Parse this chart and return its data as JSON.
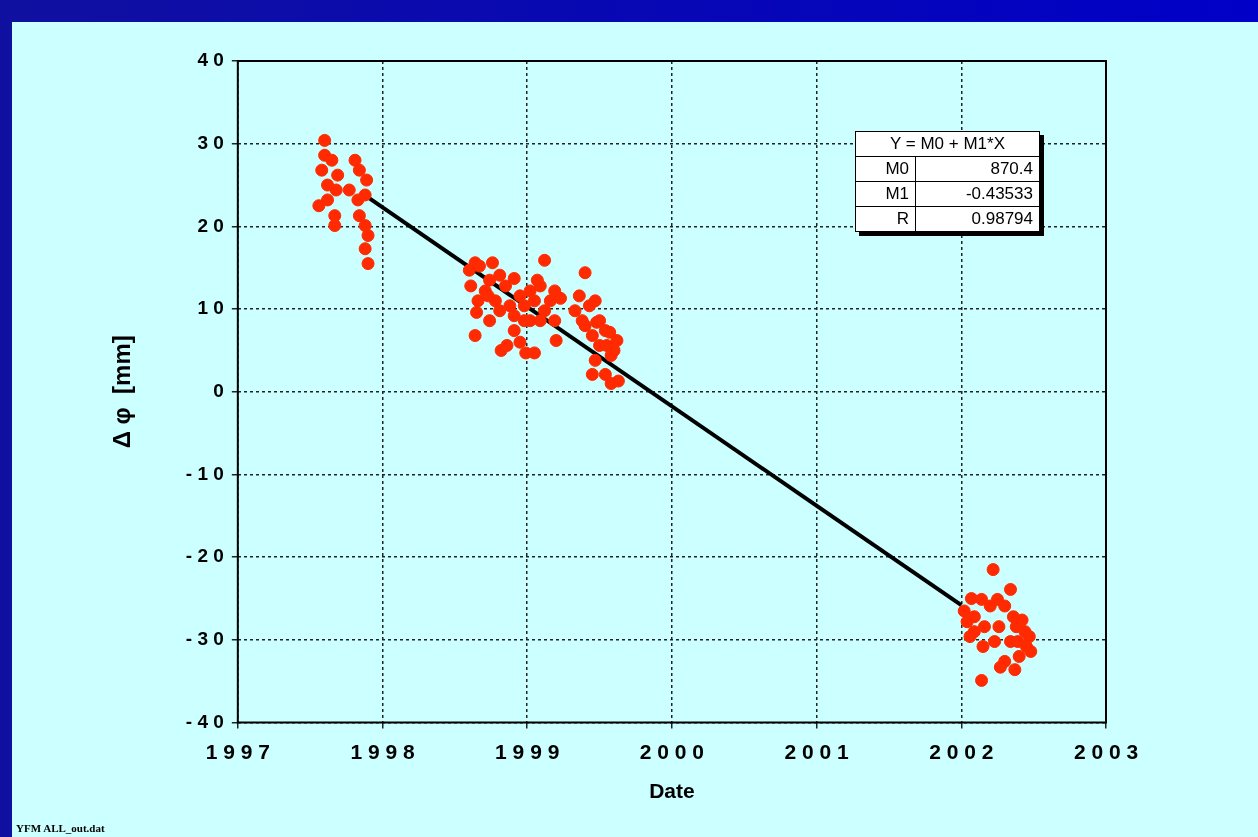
{
  "chart_data": {
    "type": "scatter",
    "xlabel": "Date",
    "ylabel": "Δ φ  [mm]",
    "xlim": [
      1997,
      2003
    ],
    "xticks": [
      1997,
      1998,
      1999,
      2000,
      2001,
      2002,
      2003
    ],
    "ylim": [
      -40,
      40
    ],
    "yticks": [
      -40,
      -30,
      -20,
      -10,
      0,
      10,
      20,
      30,
      40
    ],
    "grid": true,
    "legend": false,
    "annotations": [
      "Y = M0 + M1*X",
      "M0",
      "870.4",
      "M1",
      "-0.43533",
      "R",
      "0.98794",
      "YFM ALL_out.dat"
    ],
    "series": [
      {
        "type": "scatter",
        "marker": "circle",
        "color": "#ff2a00",
        "x": [
          1997.6,
          1997.6,
          1997.58,
          1997.65,
          1997.62,
          1997.69,
          1997.62,
          1997.68,
          1997.67,
          1997.67,
          1997.81,
          1997.84,
          1997.89,
          1997.88,
          1997.83,
          1997.84,
          1997.88,
          1997.9,
          1997.88,
          1997.9,
          1997.77,
          1997.56,
          1998.64,
          1998.6,
          1998.67,
          1998.76,
          1998.61,
          1998.66,
          1998.71,
          1998.74,
          1998.81,
          1998.85,
          1998.91,
          1998.64,
          1998.65,
          1998.78,
          1998.81,
          1998.88,
          1998.95,
          1998.82,
          1998.86,
          1998.91,
          1998.98,
          1998.74,
          1998.99,
          1999.05,
          1998.95,
          1998.73,
          1999.02,
          1999.09,
          1999.12,
          1999.05,
          1999.12,
          1999.16,
          1999.19,
          1999.23,
          1999.19,
          1999.2,
          1999.09,
          1999.02,
          1999.07,
          1998.98,
          1998.91,
          1999.4,
          1999.36,
          1999.33,
          1999.38,
          1999.43,
          1999.47,
          1999.5,
          1999.54,
          1999.57,
          1999.55,
          1999.6,
          1999.58,
          1999.62,
          1999.5,
          1999.47,
          1999.45,
          1999.54,
          1999.58,
          1999.63,
          1999.45,
          1999.4,
          1999.48,
          2002.22,
          2002.34,
          2002.07,
          2002.14,
          2002.25,
          2002.02,
          2002.09,
          2002.2,
          2002.3,
          2002.36,
          2002.38,
          2002.44,
          2002.47,
          2002.45,
          2002.48,
          2002.4,
          2002.3,
          2002.27,
          2002.37,
          2002.14,
          2002.06,
          2002.15,
          2002.23,
          2002.26,
          2002.16,
          2002.09,
          2002.34,
          2002.39,
          2002.04,
          2002.42
        ],
        "values": [
          30.4,
          28.6,
          26.8,
          28.0,
          25.0,
          26.2,
          23.2,
          24.4,
          20.1,
          21.3,
          28.0,
          26.8,
          25.6,
          23.8,
          23.2,
          21.3,
          20.1,
          18.9,
          17.3,
          15.5,
          24.4,
          22.5,
          15.6,
          14.7,
          15.2,
          15.6,
          12.8,
          11.0,
          12.2,
          13.5,
          14.1,
          12.8,
          13.7,
          6.8,
          9.6,
          11.0,
          9.8,
          10.4,
          11.6,
          5.0,
          5.6,
          7.4,
          8.6,
          8.6,
          4.7,
          4.7,
          6.0,
          11.6,
          12.2,
          12.8,
          15.9,
          11.0,
          9.8,
          11.0,
          12.2,
          11.3,
          8.6,
          6.2,
          8.6,
          8.6,
          13.5,
          10.4,
          9.2,
          14.4,
          11.6,
          9.8,
          8.6,
          10.4,
          11.0,
          8.6,
          7.4,
          7.2,
          5.6,
          5.0,
          4.4,
          6.2,
          5.6,
          3.8,
          2.1,
          2.1,
          1.0,
          1.3,
          6.8,
          8.0,
          8.4,
          -21.5,
          -23.9,
          -25.0,
          -25.1,
          -25.1,
          -26.5,
          -27.2,
          -25.9,
          -25.9,
          -27.2,
          -28.4,
          -29.0,
          -29.6,
          -30.8,
          -31.4,
          -32.0,
          -32.6,
          -33.3,
          -33.6,
          -34.9,
          -29.6,
          -30.8,
          -30.2,
          -28.4,
          -28.4,
          -29.0,
          -30.2,
          -30.2,
          -27.8,
          -27.6
        ]
      },
      {
        "type": "line",
        "color": "#000000",
        "x": [
          1997.9,
          2002.0
        ],
        "values": [
          23.5,
          -25.8
        ]
      }
    ]
  }
}
